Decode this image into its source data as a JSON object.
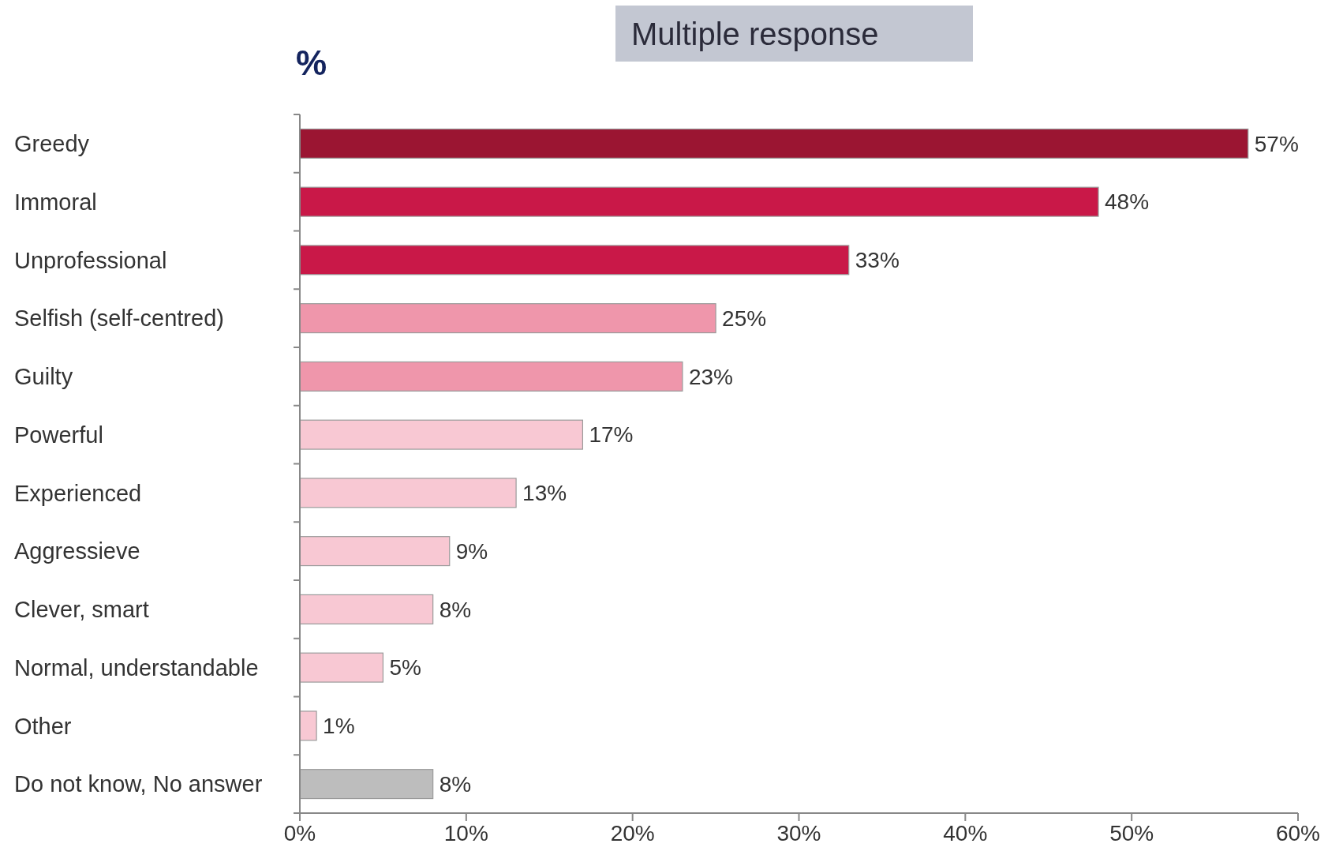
{
  "chart_data": {
    "type": "bar",
    "orientation": "horizontal",
    "categories": [
      "Greedy",
      "Immoral",
      "Unprofessional",
      "Selfish (self-centred)",
      "Guilty",
      "Powerful",
      "Experienced",
      "Aggressieve",
      "Clever, smart",
      "Normal, understandable",
      "Other",
      "Do not know, No answer"
    ],
    "values": [
      57,
      48,
      33,
      25,
      23,
      17,
      13,
      9,
      8,
      5,
      1,
      8
    ],
    "colors": [
      "#9b1532",
      "#c91848",
      "#c91848",
      "#ef96ab",
      "#ef96ab",
      "#f8c8d3",
      "#f8c8d3",
      "#f8c8d3",
      "#f8c8d3",
      "#f8c8d3",
      "#f8c8d3",
      "#bdbdbd"
    ],
    "value_labels": [
      "57%",
      "48%",
      "33%",
      "25%",
      "23%",
      "17%",
      "13%",
      "9%",
      "8%",
      "5%",
      "1%",
      "8%"
    ],
    "xlim": [
      0,
      60
    ],
    "xticks": [
      {
        "value": 0,
        "label": "0%"
      },
      {
        "value": 10,
        "label": "10%"
      },
      {
        "value": 20,
        "label": "20%"
      },
      {
        "value": 30,
        "label": "30%"
      },
      {
        "value": 40,
        "label": "40%"
      },
      {
        "value": 50,
        "label": "50%"
      },
      {
        "value": 60,
        "label": "60%"
      }
    ],
    "grid": false,
    "annotations": [
      "Multiple response",
      "%"
    ]
  }
}
